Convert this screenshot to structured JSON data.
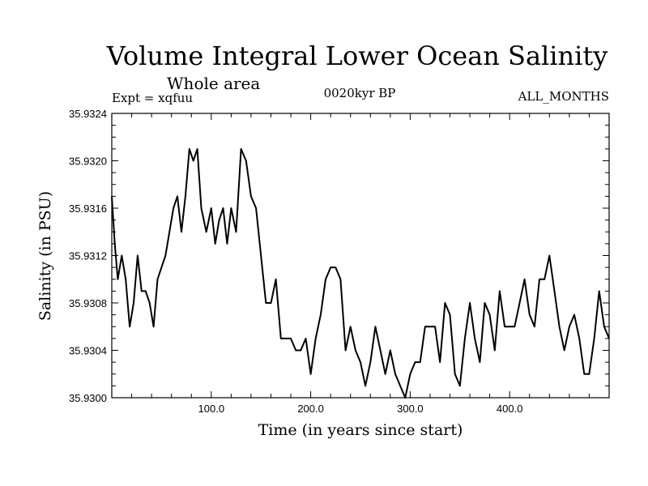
{
  "chart_data": {
    "type": "line",
    "title": "Volume Integral Lower Ocean Salinity",
    "subtitle": "Whole area",
    "experiment_label": "Expt = xqfuu",
    "period_label": "0020kyr BP",
    "months_label": "ALL_MONTHS",
    "xlabel": "Time (in years since start)",
    "ylabel": "Salinity (in PSU)",
    "xlim": [
      0,
      500
    ],
    "ylim": [
      35.93,
      35.9324
    ],
    "x_ticks": [
      100,
      200,
      300,
      400
    ],
    "x_tick_labels": [
      "100.0",
      "200.0",
      "300.0",
      "400.0"
    ],
    "y_ticks": [
      35.93,
      35.9304,
      35.9308,
      35.9312,
      35.9316,
      35.932,
      35.9324
    ],
    "y_tick_labels": [
      "35.9300",
      "35.9304",
      "35.9308",
      "35.9312",
      "35.9316",
      "35.9320",
      "35.9324"
    ],
    "series": [
      {
        "name": "salinity",
        "color": "#000000",
        "x": [
          0,
          3,
          6,
          10,
          14,
          18,
          22,
          26,
          30,
          34,
          38,
          42,
          46,
          50,
          54,
          58,
          62,
          66,
          70,
          74,
          78,
          82,
          86,
          90,
          95,
          100,
          104,
          108,
          112,
          116,
          120,
          125,
          130,
          135,
          140,
          145,
          150,
          155,
          160,
          165,
          170,
          175,
          180,
          185,
          190,
          195,
          200,
          205,
          210,
          215,
          220,
          225,
          230,
          235,
          240,
          245,
          250,
          255,
          260,
          265,
          270,
          275,
          280,
          285,
          290,
          295,
          300,
          305,
          310,
          315,
          320,
          325,
          330,
          335,
          340,
          345,
          350,
          355,
          360,
          365,
          370,
          375,
          380,
          385,
          390,
          395,
          400,
          405,
          410,
          415,
          420,
          425,
          430,
          435,
          440,
          445,
          450,
          455,
          460,
          465,
          470,
          475,
          480,
          485,
          490,
          495,
          500
        ],
        "values": [
          35.9317,
          35.9313,
          35.931,
          35.9312,
          35.931,
          35.9306,
          35.9308,
          35.9312,
          35.9309,
          35.9309,
          35.9308,
          35.9306,
          35.931,
          35.9311,
          35.9312,
          35.9314,
          35.9316,
          35.9317,
          35.9314,
          35.9317,
          35.9321,
          35.932,
          35.9321,
          35.9316,
          35.9314,
          35.9316,
          35.9313,
          35.9315,
          35.9316,
          35.9313,
          35.9316,
          35.9314,
          35.9321,
          35.932,
          35.9317,
          35.9316,
          35.9312,
          35.9308,
          35.9308,
          35.931,
          35.9305,
          35.9305,
          35.9305,
          35.9304,
          35.9304,
          35.9305,
          35.9302,
          35.9305,
          35.9307,
          35.931,
          35.9311,
          35.9311,
          35.931,
          35.9304,
          35.9306,
          35.9304,
          35.9303,
          35.9301,
          35.9303,
          35.9306,
          35.9304,
          35.9302,
          35.9304,
          35.9302,
          35.9301,
          35.93,
          35.9302,
          35.9303,
          35.9303,
          35.9306,
          35.9306,
          35.9306,
          35.9303,
          35.9308,
          35.9307,
          35.9302,
          35.9301,
          35.9305,
          35.9308,
          35.9305,
          35.9303,
          35.9308,
          35.9307,
          35.9304,
          35.9309,
          35.9306,
          35.9306,
          35.9306,
          35.9308,
          35.931,
          35.9307,
          35.9306,
          35.931,
          35.931,
          35.9312,
          35.9309,
          35.9306,
          35.9304,
          35.9306,
          35.9307,
          35.9305,
          35.9302,
          35.9302,
          35.9305,
          35.9309,
          35.9306,
          35.9305
        ]
      }
    ]
  }
}
